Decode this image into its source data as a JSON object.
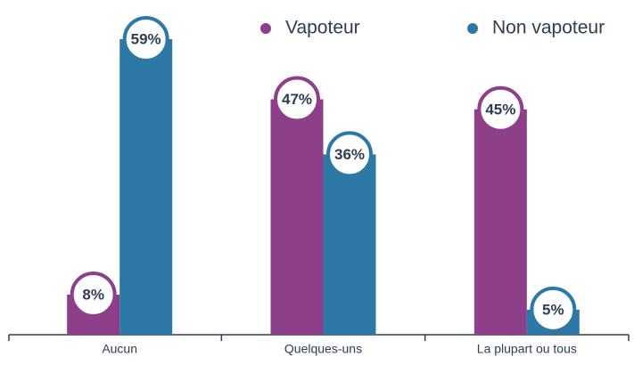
{
  "chart_data": {
    "type": "bar",
    "categories": [
      "Aucun",
      "Quelques-uns",
      "La plupart ou tous"
    ],
    "series": [
      {
        "name": "Vapoteur",
        "color": "#8e3f8a",
        "values": [
          8,
          47,
          45
        ],
        "value_labels": [
          "8%",
          "47%",
          "45%"
        ]
      },
      {
        "name": "Non vapoteur",
        "color": "#2e78a8",
        "values": [
          59,
          36,
          5
        ],
        "value_labels": [
          "59%",
          "36%",
          "5%"
        ]
      }
    ],
    "legend": "top"
  }
}
